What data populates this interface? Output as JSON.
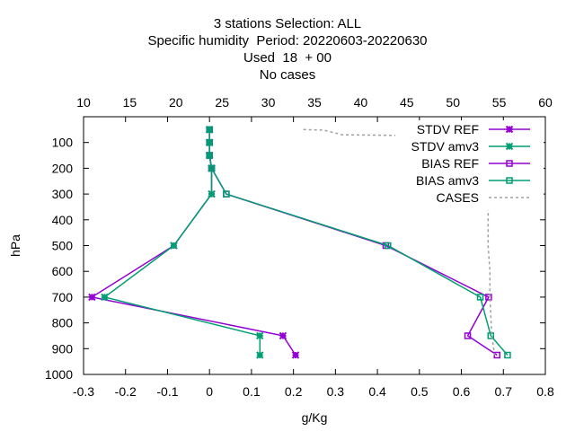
{
  "chart_data": {
    "type": "line",
    "title_lines": [
      "3 stations Selection: ALL",
      "Specific humidity  Period: 20220603-20220630",
      "Used  18  + 00",
      "No cases"
    ],
    "xlabel": "g/Kg",
    "ylabel": "hPa",
    "x2_label": "",
    "xlim": [
      -0.3,
      0.8
    ],
    "ylim": [
      1000,
      0
    ],
    "x2lim": [
      10,
      60
    ],
    "x_ticks": [
      "-0.3",
      "-0.2",
      "-0.1",
      "0",
      "0.1",
      "0.2",
      "0.3",
      "0.4",
      "0.5",
      "0.6",
      "0.7",
      "0.8"
    ],
    "y_ticks": [
      "100",
      "200",
      "300",
      "400",
      "500",
      "600",
      "700",
      "800",
      "900",
      "1000"
    ],
    "x2_ticks": [
      "10",
      "15",
      "20",
      "25",
      "30",
      "35",
      "40",
      "45",
      "50",
      "55",
      "60"
    ],
    "grid": false,
    "legend_position": "top-right",
    "series": [
      {
        "name": "STDV REF",
        "color": "#9400d3",
        "marker": "x",
        "axis": "bottom",
        "points": [
          [
            0,
            50
          ],
          [
            0,
            100
          ],
          [
            0,
            150
          ],
          [
            0.005,
            200
          ],
          [
            0.005,
            300
          ],
          [
            -0.085,
            500
          ],
          [
            -0.28,
            700
          ],
          [
            0.175,
            850
          ],
          [
            0.205,
            925
          ]
        ]
      },
      {
        "name": "STDV amv3",
        "color": "#009e73",
        "marker": "x",
        "axis": "bottom",
        "points": [
          [
            0,
            50
          ],
          [
            0,
            100
          ],
          [
            0,
            150
          ],
          [
            0.005,
            200
          ],
          [
            0.005,
            300
          ],
          [
            -0.085,
            500
          ],
          [
            -0.25,
            700
          ],
          [
            0.12,
            850
          ],
          [
            0.12,
            925
          ]
        ]
      },
      {
        "name": "BIAS REF",
        "color": "#9400d3",
        "marker": "square",
        "axis": "bottom",
        "points": [
          [
            0,
            50
          ],
          [
            0,
            100
          ],
          [
            0,
            150
          ],
          [
            0.005,
            200
          ],
          [
            0.04,
            300
          ],
          [
            0.42,
            500
          ],
          [
            0.665,
            700
          ],
          [
            0.615,
            850
          ],
          [
            0.685,
            925
          ]
        ]
      },
      {
        "name": "BIAS amv3",
        "color": "#009e73",
        "marker": "square",
        "axis": "bottom",
        "points": [
          [
            0,
            50
          ],
          [
            0,
            100
          ],
          [
            0,
            150
          ],
          [
            0.005,
            200
          ],
          [
            0.04,
            300
          ],
          [
            0.425,
            500
          ],
          [
            0.645,
            700
          ],
          [
            0.67,
            850
          ],
          [
            0.71,
            925
          ]
        ]
      },
      {
        "name": "CASES",
        "color": "#a0a0a0",
        "marker": "none",
        "dashed": true,
        "axis": "top",
        "points": [
          [
            33.8,
            50
          ],
          [
            36,
            52
          ],
          [
            38,
            70
          ],
          [
            50,
            75
          ],
          [
            53.8,
            90
          ],
          [
            53.8,
            150
          ],
          [
            53.8,
            200
          ],
          [
            53.8,
            300
          ],
          [
            53.8,
            400
          ],
          [
            53.8,
            500
          ],
          [
            54,
            600
          ],
          [
            54,
            700
          ],
          [
            54.2,
            850
          ],
          [
            54.5,
            925
          ]
        ]
      }
    ]
  }
}
